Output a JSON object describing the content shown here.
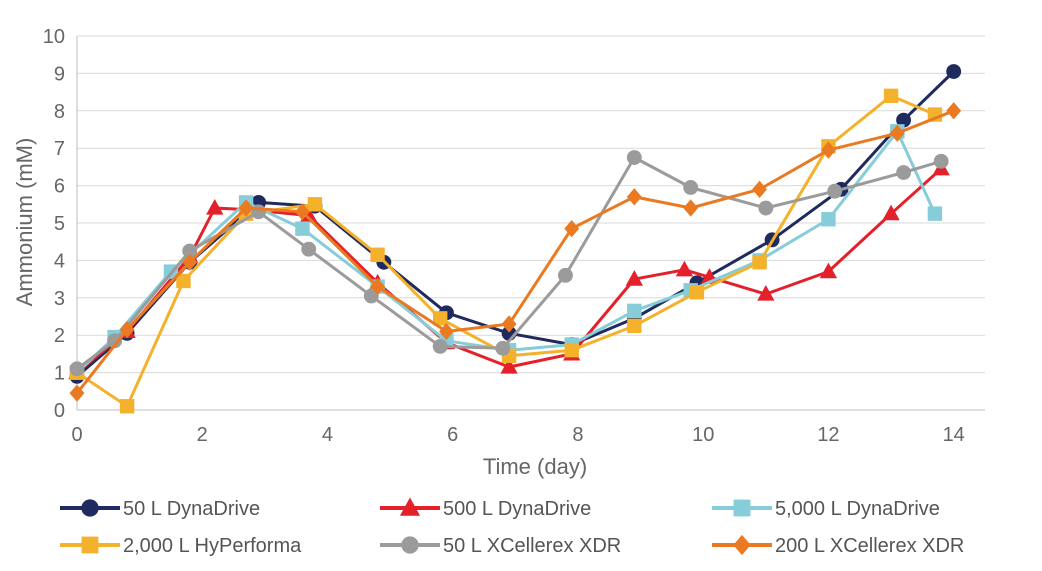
{
  "chart_data": {
    "type": "line",
    "title": "",
    "xlabel": "Time (day)",
    "ylabel": "Ammonium (mM)",
    "xlim": [
      0,
      14.5
    ],
    "ylim": [
      0,
      10
    ],
    "xticks": [
      0,
      2,
      4,
      6,
      8,
      10,
      12,
      14
    ],
    "yticks": [
      0,
      1,
      2,
      3,
      4,
      5,
      6,
      7,
      8,
      9,
      10
    ],
    "grid": "horizontal",
    "legend_position": "bottom",
    "series": [
      {
        "name": "50 L DynaDrive",
        "color": "#1f2a5e",
        "marker": "circle",
        "points": [
          [
            0,
            0.9
          ],
          [
            0.8,
            2.05
          ],
          [
            1.8,
            3.95
          ],
          [
            2.9,
            5.55
          ],
          [
            3.8,
            5.45
          ],
          [
            4.9,
            3.95
          ],
          [
            5.9,
            2.6
          ],
          [
            6.9,
            2.05
          ],
          [
            7.9,
            1.75
          ],
          [
            8.9,
            2.45
          ],
          [
            9.9,
            3.4
          ],
          [
            11.1,
            4.55
          ],
          [
            12.2,
            5.9
          ],
          [
            13.2,
            7.75
          ],
          [
            14.0,
            9.05
          ]
        ]
      },
      {
        "name": "500 L DynaDrive",
        "color": "#e4202a",
        "marker": "triangle",
        "points": [
          [
            0,
            1.0
          ],
          [
            0.8,
            2.1
          ],
          [
            1.8,
            4.1
          ],
          [
            2.2,
            5.4
          ],
          [
            2.8,
            5.35
          ],
          [
            3.7,
            5.2
          ],
          [
            4.8,
            3.4
          ],
          [
            5.9,
            1.8
          ],
          [
            6.9,
            1.15
          ],
          [
            7.9,
            1.5
          ],
          [
            8.9,
            3.5
          ],
          [
            9.7,
            3.75
          ],
          [
            10.1,
            3.55
          ],
          [
            11.0,
            3.1
          ],
          [
            12.0,
            3.7
          ],
          [
            13.0,
            5.25
          ],
          [
            13.8,
            6.45
          ]
        ]
      },
      {
        "name": "5,000 L DynaDrive",
        "color": "#86ccd9",
        "marker": "square",
        "points": [
          [
            0,
            1.0
          ],
          [
            0.6,
            1.95
          ],
          [
            1.5,
            3.7
          ],
          [
            2.7,
            5.55
          ],
          [
            3.6,
            4.85
          ],
          [
            4.8,
            3.3
          ],
          [
            5.9,
            1.85
          ],
          [
            6.9,
            1.6
          ],
          [
            7.9,
            1.75
          ],
          [
            8.9,
            2.65
          ],
          [
            9.8,
            3.2
          ],
          [
            10.9,
            4.0
          ],
          [
            12.0,
            5.1
          ],
          [
            13.1,
            7.45
          ],
          [
            13.7,
            5.25
          ]
        ]
      },
      {
        "name": "2,000 L HyPerforma",
        "color": "#f4b12c",
        "marker": "square",
        "points": [
          [
            0,
            1.0
          ],
          [
            0.8,
            0.1
          ],
          [
            1.7,
            3.45
          ],
          [
            2.7,
            5.25
          ],
          [
            3.8,
            5.5
          ],
          [
            4.8,
            4.15
          ],
          [
            5.8,
            2.45
          ],
          [
            6.9,
            1.45
          ],
          [
            7.9,
            1.6
          ],
          [
            8.9,
            2.25
          ],
          [
            9.9,
            3.15
          ],
          [
            10.9,
            3.95
          ],
          [
            12.0,
            7.05
          ],
          [
            13.0,
            8.4
          ],
          [
            13.7,
            7.9
          ]
        ]
      },
      {
        "name": "50 L XCellerex XDR",
        "color": "#9b9b9b",
        "marker": "circle",
        "points": [
          [
            0,
            1.1
          ],
          [
            0.6,
            1.85
          ],
          [
            1.8,
            4.25
          ],
          [
            2.9,
            5.3
          ],
          [
            3.7,
            4.3
          ],
          [
            4.7,
            3.05
          ],
          [
            5.8,
            1.7
          ],
          [
            6.8,
            1.65
          ],
          [
            7.8,
            3.6
          ],
          [
            8.9,
            6.75
          ],
          [
            9.8,
            5.95
          ],
          [
            11.0,
            5.4
          ],
          [
            12.1,
            5.85
          ],
          [
            13.2,
            6.35
          ],
          [
            13.8,
            6.65
          ]
        ]
      },
      {
        "name": "200 L XCellerex XDR",
        "color": "#ea7a22",
        "marker": "diamond",
        "points": [
          [
            0,
            0.45
          ],
          [
            0.8,
            2.15
          ],
          [
            1.8,
            3.95
          ],
          [
            2.7,
            5.4
          ],
          [
            3.6,
            5.3
          ],
          [
            4.8,
            3.3
          ],
          [
            5.9,
            2.1
          ],
          [
            6.9,
            2.3
          ],
          [
            7.9,
            4.85
          ],
          [
            8.9,
            5.7
          ],
          [
            9.8,
            5.4
          ],
          [
            10.9,
            5.9
          ],
          [
            12.0,
            6.95
          ],
          [
            13.1,
            7.4
          ],
          [
            14.0,
            8.0
          ]
        ]
      }
    ]
  }
}
